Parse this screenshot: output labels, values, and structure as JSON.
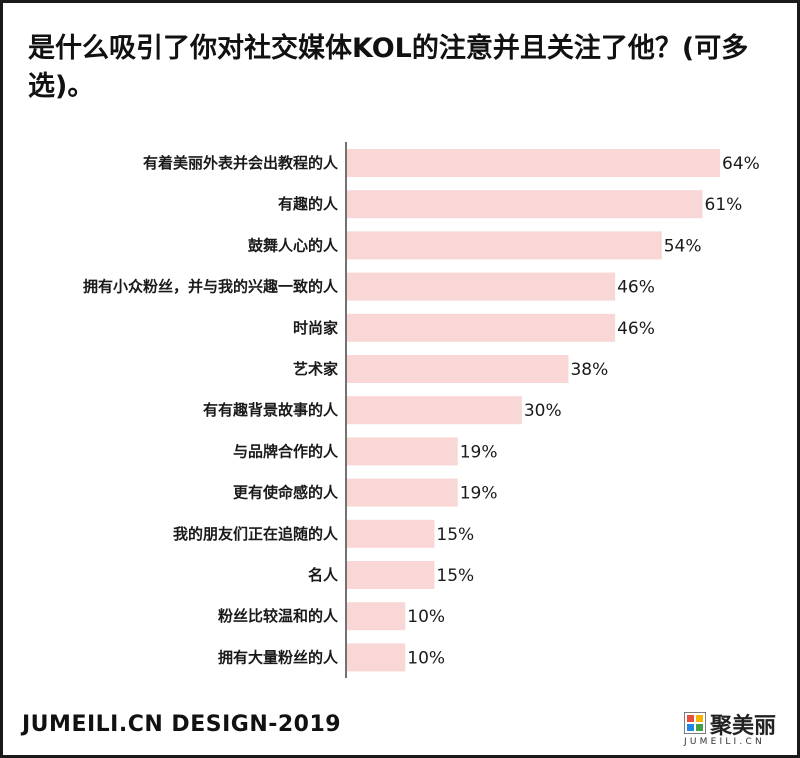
{
  "title": "是什么吸引了你对社交媒体KOL的注意并且关注了他？(可多选)。",
  "footer": "JUMEILI.CN DESIGN-2019",
  "logo": {
    "name": "聚美丽",
    "sub": "JUMEILI.CN",
    "icon": "jumeili-logo-icon"
  },
  "colors": {
    "bar": "#f8d7d6",
    "axis": "#444444",
    "text": "#1a1a1a",
    "border": "#1a1a1a"
  },
  "chart_data": {
    "type": "bar",
    "orientation": "horizontal",
    "title": "是什么吸引了你对社交媒体KOL的注意并且关注了他？(可多选)。",
    "xlabel": "",
    "ylabel": "",
    "xlim": [
      0,
      64
    ],
    "grid": false,
    "categories": [
      "有着美丽外表并会出教程的人",
      "有趣的人",
      "鼓舞人心的人",
      "拥有小众粉丝，并与我的兴趣一致的人",
      "时尚家",
      "艺术家",
      "有有趣背景故事的人",
      "与品牌合作的人",
      "更有使命感的人",
      "我的朋友们正在追随的人",
      "名人",
      "粉丝比较温和的人",
      "拥有大量粉丝的人"
    ],
    "values": [
      64,
      61,
      54,
      46,
      46,
      38,
      30,
      19,
      19,
      15,
      15,
      10,
      10
    ],
    "value_labels": [
      "64%",
      "61%",
      "54%",
      "46%",
      "46%",
      "38%",
      "30%",
      "19%",
      "19%",
      "15%",
      "15%",
      "10%",
      "10%"
    ]
  }
}
